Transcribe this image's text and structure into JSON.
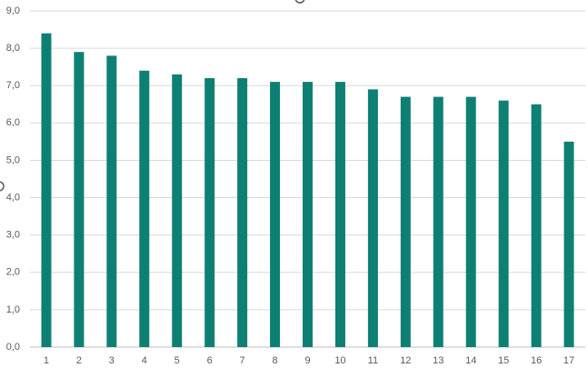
{
  "chart_data": {
    "type": "bar",
    "categories": [
      "1",
      "2",
      "3",
      "4",
      "5",
      "6",
      "7",
      "8",
      "9",
      "10",
      "11",
      "12",
      "13",
      "14",
      "15",
      "16",
      "17"
    ],
    "values": [
      8.4,
      7.9,
      7.8,
      7.4,
      7.3,
      7.2,
      7.2,
      7.1,
      7.1,
      7.1,
      6.9,
      6.7,
      6.7,
      6.7,
      6.6,
      6.5,
      5.5
    ],
    "color": "#0e8073",
    "ylim": [
      0,
      9
    ],
    "yticks": [
      {
        "value": 0,
        "label": "0,0"
      },
      {
        "value": 1,
        "label": "1,0"
      },
      {
        "value": 2,
        "label": "2,0"
      },
      {
        "value": 3,
        "label": "3,0"
      },
      {
        "value": 4,
        "label": "4,0"
      },
      {
        "value": 5,
        "label": "5,0"
      },
      {
        "value": 6,
        "label": "6,0"
      },
      {
        "value": 7,
        "label": "7,0"
      },
      {
        "value": 8,
        "label": "8,0"
      },
      {
        "value": 9,
        "label": "9,0"
      }
    ],
    "grid": true
  }
}
